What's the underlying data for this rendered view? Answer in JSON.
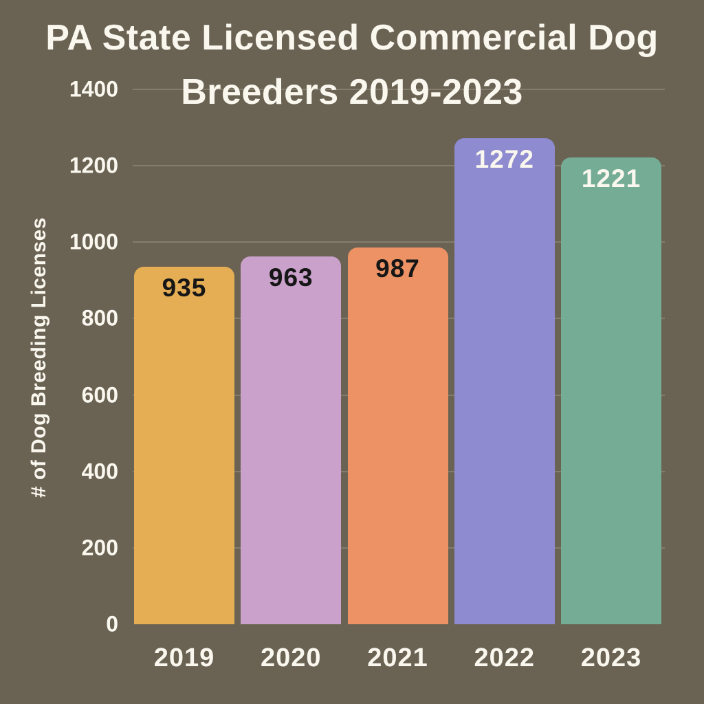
{
  "title": {
    "line1": "PA State Licensed Commercial Dog",
    "line2": "Breeders 2019-2023"
  },
  "y_axis": {
    "label": "# of Dog Breeding Licenses"
  },
  "chart_data": {
    "type": "bar",
    "title": "PA State Licensed Commercial Dog Breeders 2019-2023",
    "categories": [
      "2019",
      "2020",
      "2021",
      "2022",
      "2023"
    ],
    "values": [
      935,
      963,
      987,
      1272,
      1221
    ],
    "bar_colors": [
      "#E5AE54",
      "#C9A1CB",
      "#EC9265",
      "#8E8BD0",
      "#75AC96"
    ],
    "value_label_colors": [
      "#161616",
      "#161616",
      "#161616",
      "#FAF7EF",
      "#FAF7EF"
    ],
    "xlabel": "",
    "ylabel": "# of Dog Breeding Licenses",
    "yticks": [
      0,
      200,
      400,
      600,
      800,
      1000,
      1200,
      1400
    ],
    "ylim": [
      0,
      1400
    ],
    "grid": true,
    "legend": false,
    "colors": {
      "background": "#6A6252",
      "text": "#FAF7EF",
      "gridline": "rgba(250, 247, 239, 0.18)"
    }
  }
}
